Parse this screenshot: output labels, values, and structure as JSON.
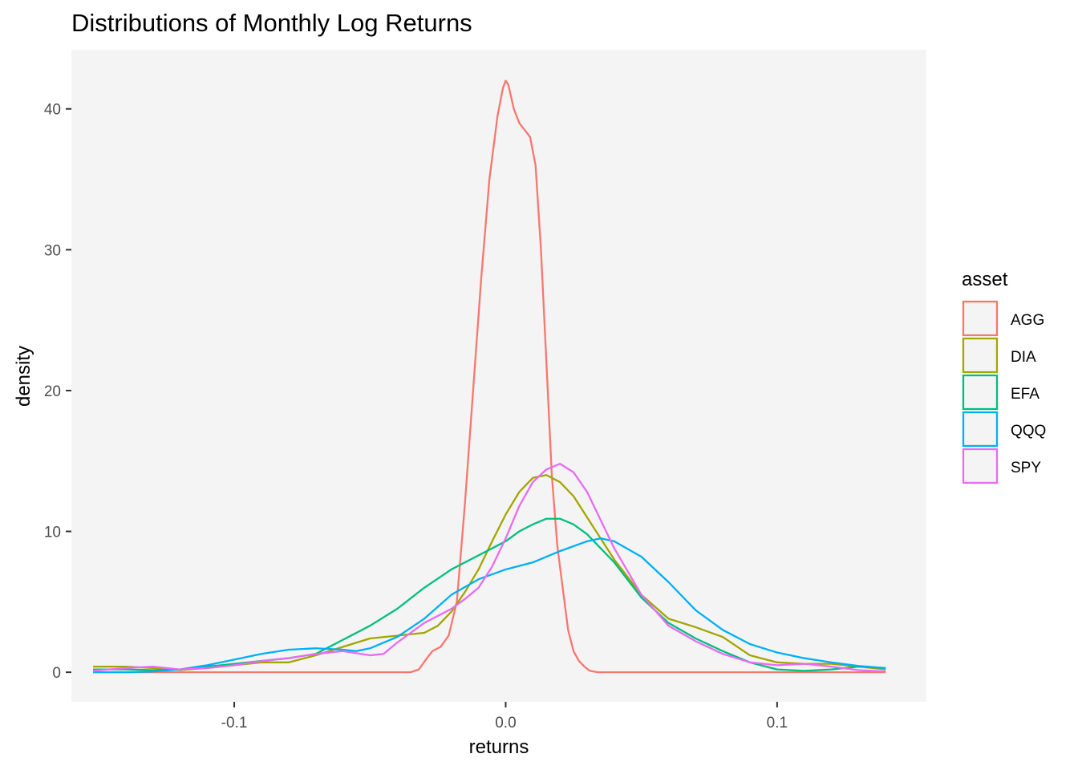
{
  "chart_data": {
    "type": "line",
    "title": "Distributions of Monthly Log Returns",
    "xlabel": "returns",
    "ylabel": "density",
    "xlim": [
      -0.16,
      0.155
    ],
    "ylim": [
      -2.1,
      44.2
    ],
    "x_ticks": [
      {
        "value": -0.1,
        "label": "-0.1"
      },
      {
        "value": 0.0,
        "label": "0.0"
      },
      {
        "value": 0.1,
        "label": "0.1"
      }
    ],
    "y_ticks": [
      {
        "value": 0,
        "label": "0"
      },
      {
        "value": 10,
        "label": "10"
      },
      {
        "value": 20,
        "label": "20"
      },
      {
        "value": 30,
        "label": "30"
      },
      {
        "value": 40,
        "label": "40"
      }
    ],
    "grid": "off",
    "panel_background": "#f4f4f4",
    "legend": {
      "title": "asset",
      "position": "right"
    },
    "series": [
      {
        "name": "AGG",
        "color": "#F8766D",
        "points": [
          [
            -0.152,
            0
          ],
          [
            -0.1,
            0
          ],
          [
            -0.05,
            0
          ],
          [
            -0.035,
            0
          ],
          [
            -0.032,
            0.2
          ],
          [
            -0.029,
            1.0
          ],
          [
            -0.027,
            1.5
          ],
          [
            -0.024,
            1.8
          ],
          [
            -0.021,
            2.6
          ],
          [
            -0.018,
            5
          ],
          [
            -0.015,
            12
          ],
          [
            -0.012,
            20
          ],
          [
            -0.009,
            28
          ],
          [
            -0.006,
            35
          ],
          [
            -0.003,
            39.5
          ],
          [
            -0.001,
            41.5
          ],
          [
            0.0,
            42
          ],
          [
            0.001,
            41.7
          ],
          [
            0.003,
            40
          ],
          [
            0.005,
            39
          ],
          [
            0.007,
            38.5
          ],
          [
            0.009,
            38
          ],
          [
            0.011,
            36
          ],
          [
            0.013,
            30
          ],
          [
            0.015,
            22
          ],
          [
            0.017,
            14
          ],
          [
            0.019,
            9
          ],
          [
            0.021,
            6
          ],
          [
            0.023,
            3
          ],
          [
            0.025,
            1.5
          ],
          [
            0.027,
            0.8
          ],
          [
            0.029,
            0.4
          ],
          [
            0.031,
            0.1
          ],
          [
            0.034,
            0
          ],
          [
            0.05,
            0
          ],
          [
            0.1,
            0
          ],
          [
            0.14,
            0
          ]
        ]
      },
      {
        "name": "DIA",
        "color": "#A3A500",
        "points": [
          [
            -0.152,
            0.4
          ],
          [
            -0.14,
            0.4
          ],
          [
            -0.13,
            0.3
          ],
          [
            -0.12,
            0.15
          ],
          [
            -0.11,
            0.3
          ],
          [
            -0.1,
            0.5
          ],
          [
            -0.09,
            0.7
          ],
          [
            -0.08,
            0.7
          ],
          [
            -0.07,
            1.2
          ],
          [
            -0.06,
            1.8
          ],
          [
            -0.05,
            2.4
          ],
          [
            -0.04,
            2.6
          ],
          [
            -0.03,
            2.8
          ],
          [
            -0.025,
            3.3
          ],
          [
            -0.02,
            4.3
          ],
          [
            -0.015,
            5.7
          ],
          [
            -0.01,
            7.3
          ],
          [
            -0.005,
            9.3
          ],
          [
            0.0,
            11.2
          ],
          [
            0.005,
            12.8
          ],
          [
            0.01,
            13.8
          ],
          [
            0.015,
            14
          ],
          [
            0.02,
            13.5
          ],
          [
            0.025,
            12.5
          ],
          [
            0.03,
            11
          ],
          [
            0.035,
            9.5
          ],
          [
            0.04,
            8
          ],
          [
            0.05,
            5.5
          ],
          [
            0.06,
            3.8
          ],
          [
            0.07,
            3.2
          ],
          [
            0.08,
            2.5
          ],
          [
            0.09,
            1.2
          ],
          [
            0.1,
            0.7
          ],
          [
            0.11,
            0.6
          ],
          [
            0.12,
            0.6
          ],
          [
            0.13,
            0.4
          ],
          [
            0.14,
            0.2
          ]
        ]
      },
      {
        "name": "EFA",
        "color": "#00BF7D",
        "points": [
          [
            -0.152,
            0.2
          ],
          [
            -0.14,
            0.2
          ],
          [
            -0.13,
            0.15
          ],
          [
            -0.12,
            0.2
          ],
          [
            -0.11,
            0.4
          ],
          [
            -0.1,
            0.6
          ],
          [
            -0.09,
            0.8
          ],
          [
            -0.08,
            1.0
          ],
          [
            -0.07,
            1.3
          ],
          [
            -0.06,
            2.3
          ],
          [
            -0.05,
            3.3
          ],
          [
            -0.04,
            4.5
          ],
          [
            -0.03,
            6
          ],
          [
            -0.02,
            7.3
          ],
          [
            -0.01,
            8.3
          ],
          [
            0.0,
            9.3
          ],
          [
            0.005,
            10
          ],
          [
            0.01,
            10.5
          ],
          [
            0.015,
            10.9
          ],
          [
            0.02,
            10.9
          ],
          [
            0.025,
            10.5
          ],
          [
            0.03,
            9.8
          ],
          [
            0.04,
            7.8
          ],
          [
            0.05,
            5.3
          ],
          [
            0.06,
            3.5
          ],
          [
            0.07,
            2.4
          ],
          [
            0.08,
            1.5
          ],
          [
            0.09,
            0.7
          ],
          [
            0.1,
            0.2
          ],
          [
            0.11,
            0.1
          ],
          [
            0.12,
            0.2
          ],
          [
            0.13,
            0.4
          ],
          [
            0.14,
            0.3
          ]
        ]
      },
      {
        "name": "QQQ",
        "color": "#00B0F6",
        "points": [
          [
            -0.152,
            0
          ],
          [
            -0.14,
            0
          ],
          [
            -0.13,
            0.05
          ],
          [
            -0.12,
            0.2
          ],
          [
            -0.11,
            0.5
          ],
          [
            -0.1,
            0.9
          ],
          [
            -0.09,
            1.3
          ],
          [
            -0.08,
            1.6
          ],
          [
            -0.07,
            1.7
          ],
          [
            -0.06,
            1.6
          ],
          [
            -0.055,
            1.5
          ],
          [
            -0.05,
            1.7
          ],
          [
            -0.04,
            2.5
          ],
          [
            -0.03,
            3.8
          ],
          [
            -0.02,
            5.5
          ],
          [
            -0.01,
            6.6
          ],
          [
            0.0,
            7.3
          ],
          [
            0.01,
            7.8
          ],
          [
            0.02,
            8.6
          ],
          [
            0.03,
            9.3
          ],
          [
            0.035,
            9.5
          ],
          [
            0.04,
            9.3
          ],
          [
            0.05,
            8.2
          ],
          [
            0.06,
            6.4
          ],
          [
            0.07,
            4.4
          ],
          [
            0.08,
            3
          ],
          [
            0.09,
            2
          ],
          [
            0.1,
            1.4
          ],
          [
            0.11,
            1.0
          ],
          [
            0.12,
            0.7
          ],
          [
            0.13,
            0.45
          ],
          [
            0.14,
            0.3
          ]
        ]
      },
      {
        "name": "SPY",
        "color": "#E76BF3",
        "points": [
          [
            -0.152,
            0.1
          ],
          [
            -0.14,
            0.3
          ],
          [
            -0.13,
            0.4
          ],
          [
            -0.12,
            0.2
          ],
          [
            -0.11,
            0.3
          ],
          [
            -0.1,
            0.5
          ],
          [
            -0.09,
            0.8
          ],
          [
            -0.08,
            1.0
          ],
          [
            -0.07,
            1.3
          ],
          [
            -0.06,
            1.5
          ],
          [
            -0.05,
            1.2
          ],
          [
            -0.045,
            1.3
          ],
          [
            -0.04,
            2.1
          ],
          [
            -0.03,
            3.5
          ],
          [
            -0.02,
            4.5
          ],
          [
            -0.015,
            5.2
          ],
          [
            -0.01,
            6
          ],
          [
            -0.005,
            7.5
          ],
          [
            0.0,
            9.5
          ],
          [
            0.005,
            11.8
          ],
          [
            0.01,
            13.5
          ],
          [
            0.015,
            14.4
          ],
          [
            0.02,
            14.8
          ],
          [
            0.025,
            14.2
          ],
          [
            0.03,
            12.8
          ],
          [
            0.035,
            10.8
          ],
          [
            0.04,
            8.8
          ],
          [
            0.05,
            5.5
          ],
          [
            0.06,
            3.3
          ],
          [
            0.07,
            2.2
          ],
          [
            0.08,
            1.3
          ],
          [
            0.09,
            0.7
          ],
          [
            0.1,
            0.5
          ],
          [
            0.11,
            0.6
          ],
          [
            0.12,
            0.4
          ],
          [
            0.13,
            0.15
          ],
          [
            0.14,
            0.05
          ]
        ]
      }
    ]
  }
}
